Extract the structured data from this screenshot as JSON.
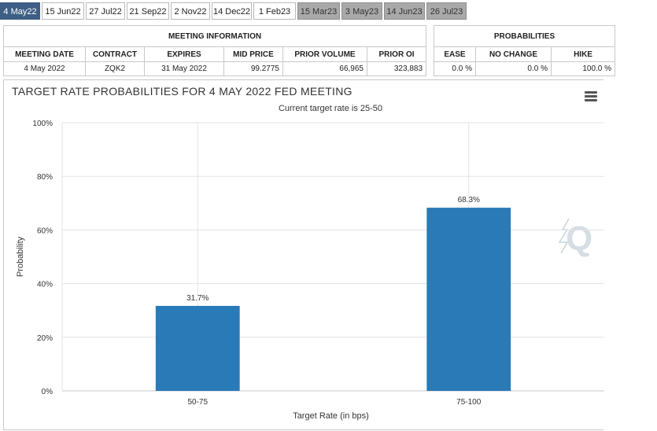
{
  "tabs": [
    {
      "label": "4 May22",
      "state": "active"
    },
    {
      "label": "15 Jun22",
      "state": "normal"
    },
    {
      "label": "27 Jul22",
      "state": "normal"
    },
    {
      "label": "21 Sep22",
      "state": "normal"
    },
    {
      "label": "2 Nov22",
      "state": "normal"
    },
    {
      "label": "14 Dec22",
      "state": "normal"
    },
    {
      "label": "1 Feb23",
      "state": "normal"
    },
    {
      "label": "15 Mar23",
      "state": "dim"
    },
    {
      "label": "3 May23",
      "state": "dim"
    },
    {
      "label": "14 Jun23",
      "state": "dim"
    },
    {
      "label": "26 Jul23",
      "state": "dim"
    }
  ],
  "meeting_info": {
    "title": "MEETING INFORMATION",
    "headers": [
      "MEETING DATE",
      "CONTRACT",
      "EXPIRES",
      "MID PRICE",
      "PRIOR VOLUME",
      "PRIOR OI"
    ],
    "row": [
      "4 May 2022",
      "ZQK2",
      "31 May 2022",
      "99.2775",
      "66,965",
      "323,883"
    ]
  },
  "probabilities": {
    "title": "PROBABILITIES",
    "headers": [
      "EASE",
      "NO CHANGE",
      "HIKE"
    ],
    "row": [
      "0.0 %",
      "0.0 %",
      "100.0 %"
    ]
  },
  "colors": {
    "bar": "#2a7ab8",
    "tab_active": "#3d5f85",
    "tab_dim": "#a9a9a9"
  },
  "chart_data": {
    "type": "bar",
    "title": "TARGET RATE PROBABILITIES FOR 4 MAY 2022 FED MEETING",
    "subtitle": "Current target rate is 25-50",
    "xlabel": "Target Rate (in bps)",
    "ylabel": "Probability",
    "categories": [
      "50-75",
      "75-100"
    ],
    "values": [
      31.7,
      68.3
    ],
    "data_labels": [
      "31.7%",
      "68.3%"
    ],
    "ylim": [
      0,
      100
    ],
    "yticks": [
      "0%",
      "20%",
      "40%",
      "60%",
      "80%",
      "100%"
    ],
    "ytick_values": [
      0,
      20,
      40,
      60,
      80,
      100
    ],
    "grid": true,
    "menu_icon": "hamburger-menu-icon",
    "watermark_icon": "q-logo-icon"
  }
}
